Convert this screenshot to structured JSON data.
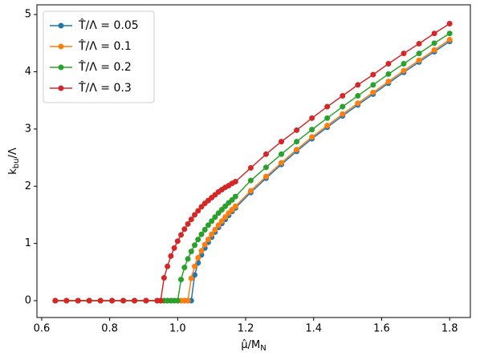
{
  "chart_data": {
    "type": "line",
    "x_label": {
      "main": "μ̂/M",
      "sub": "N"
    },
    "y_label": {
      "main": "k",
      "sub": "bu",
      "rest": "/Λ"
    },
    "xlim": [
      0.586,
      1.861
    ],
    "ylim": [
      -0.294,
      5.17
    ],
    "xticks": [
      0.6,
      0.8,
      {
        "value": 1,
        "label": "1.0"
      },
      1.2,
      1.4,
      1.6,
      1.8
    ],
    "yticks": [
      0,
      1,
      2,
      3,
      4,
      5
    ],
    "legend": "upper-left",
    "x": [
      0.64,
      0.673,
      0.707,
      0.74,
      0.773,
      0.807,
      0.84,
      0.873,
      0.907,
      0.94,
      0.95,
      0.96,
      0.97,
      0.98,
      0.99,
      1.0,
      1.01,
      1.02,
      1.03,
      1.04,
      1.05,
      1.06,
      1.07,
      1.08,
      1.09,
      1.1,
      1.11,
      1.12,
      1.13,
      1.14,
      1.15,
      1.16,
      1.17,
      1.215,
      1.26,
      1.305,
      1.35,
      1.395,
      1.44,
      1.485,
      1.53,
      1.575,
      1.62,
      1.665,
      1.71,
      1.755,
      1.8
    ],
    "series": [
      {
        "name": "T̂/Λ = 0.05",
        "color": "#1f77b4",
        "values": [
          0,
          0,
          0,
          0,
          0,
          0,
          0,
          0,
          0,
          0,
          0,
          0,
          0,
          0,
          0,
          0,
          0,
          0,
          0,
          0,
          0.45,
          0.66,
          0.8,
          0.92,
          1.02,
          1.11,
          1.2,
          1.28,
          1.35,
          1.42,
          1.49,
          1.56,
          1.62,
          1.89,
          2.14,
          2.38,
          2.61,
          2.83,
          3.03,
          3.23,
          3.42,
          3.61,
          3.8,
          3.99,
          4.17,
          4.35,
          4.53
        ]
      },
      {
        "name": "T̂/Λ = 0.1",
        "color": "#ff7f0e",
        "values": [
          0,
          0,
          0,
          0,
          0,
          0,
          0,
          0,
          0,
          0,
          0,
          0,
          0,
          0,
          0,
          0,
          0,
          0,
          0,
          0.39,
          0.6,
          0.75,
          0.87,
          0.98,
          1.07,
          1.16,
          1.24,
          1.32,
          1.39,
          1.46,
          1.53,
          1.59,
          1.65,
          1.92,
          2.17,
          2.41,
          2.64,
          2.86,
          3.06,
          3.26,
          3.45,
          3.64,
          3.83,
          4.02,
          4.2,
          4.38,
          4.56
        ]
      },
      {
        "name": "T̂/Λ = 0.2",
        "color": "#2ca02c",
        "values": [
          0,
          0,
          0,
          0,
          0,
          0,
          0,
          0,
          0,
          0,
          0,
          0,
          0,
          0,
          0,
          0,
          0.37,
          0.58,
          0.73,
          0.86,
          0.97,
          1.07,
          1.16,
          1.24,
          1.32,
          1.39,
          1.46,
          1.53,
          1.59,
          1.65,
          1.71,
          1.76,
          1.82,
          2.1,
          2.33,
          2.56,
          2.78,
          2.99,
          3.19,
          3.39,
          3.58,
          3.77,
          3.96,
          4.14,
          4.32,
          4.5,
          4.67
        ]
      },
      {
        "name": "T̂/Λ = 0.3",
        "color": "#d62728",
        "values": [
          0,
          0,
          0,
          0,
          0,
          0,
          0,
          0,
          0,
          0,
          0,
          0.4,
          0.6,
          0.78,
          0.92,
          1.04,
          1.15,
          1.25,
          1.34,
          1.42,
          1.5,
          1.57,
          1.64,
          1.7,
          1.75,
          1.8,
          1.85,
          1.9,
          1.94,
          1.98,
          2.01,
          2.05,
          2.08,
          2.32,
          2.56,
          2.78,
          2.98,
          3.19,
          3.39,
          3.58,
          3.77,
          3.95,
          4.14,
          4.32,
          4.49,
          4.67,
          4.84
        ]
      }
    ]
  }
}
